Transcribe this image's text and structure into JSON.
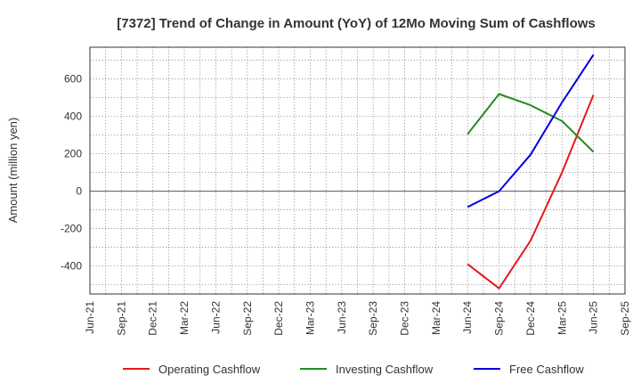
{
  "chart_data": {
    "type": "line",
    "title": "[7372]  Trend of Change in Amount (YoY) of 12Mo Moving Sum of Cashflows",
    "xlabel": "",
    "ylabel": "Amount (million yen)",
    "x": [
      "Jun-21",
      "Sep-21",
      "Dec-21",
      "Mar-22",
      "Jun-22",
      "Sep-22",
      "Dec-22",
      "Mar-23",
      "Jun-23",
      "Sep-23",
      "Dec-23",
      "Mar-24",
      "Jun-24",
      "Sep-24",
      "Dec-24",
      "Mar-25",
      "Jun-25",
      "Sep-25"
    ],
    "ylim": [
      -550,
      770
    ],
    "yticks": [
      -400,
      -200,
      0,
      200,
      400,
      600
    ],
    "grid": true,
    "legend_position": "bottom",
    "series": [
      {
        "name": "Operating Cashflow",
        "color": "#e31a1c",
        "values": [
          null,
          null,
          null,
          null,
          null,
          null,
          null,
          null,
          null,
          null,
          null,
          null,
          -390,
          -520,
          -265,
          100,
          515,
          null
        ]
      },
      {
        "name": "Investing Cashflow",
        "color": "#228b22",
        "values": [
          null,
          null,
          null,
          null,
          null,
          null,
          null,
          null,
          null,
          null,
          null,
          null,
          305,
          520,
          460,
          375,
          210,
          null
        ]
      },
      {
        "name": "Free Cashflow",
        "color": "#0000dd",
        "values": [
          null,
          null,
          null,
          null,
          null,
          null,
          null,
          null,
          null,
          null,
          null,
          null,
          -85,
          0,
          195,
          475,
          730,
          null
        ]
      }
    ]
  }
}
